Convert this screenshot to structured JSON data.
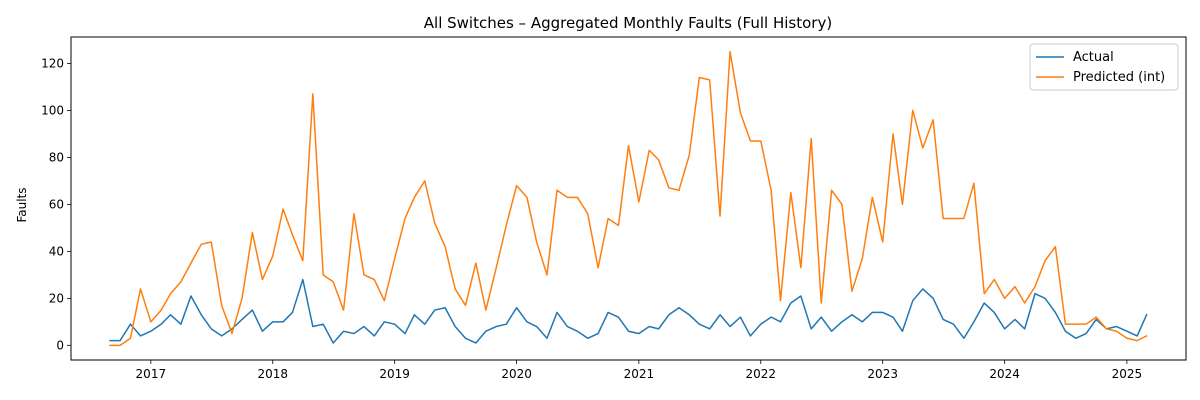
{
  "chart_data": {
    "type": "line",
    "title": "All Switches – Aggregated Monthly Faults (Full History)",
    "xlabel": "",
    "ylabel": "Faults",
    "x_start": "2016-09",
    "x_frequency": "monthly",
    "xlim": [
      "2016-05-07",
      "2025-06-27"
    ],
    "ylim": [
      -6.25,
      131.25
    ],
    "x_ticks": [
      "2017",
      "2018",
      "2019",
      "2020",
      "2021",
      "2022",
      "2023",
      "2024",
      "2025"
    ],
    "y_ticks": [
      0,
      20,
      40,
      60,
      80,
      100,
      120
    ],
    "grid": false,
    "legend": "top-right",
    "series": [
      {
        "name": "Actual",
        "color": "#1f77b4",
        "values": [
          2,
          2,
          9,
          4,
          6,
          9,
          13,
          9,
          21,
          13,
          7,
          4,
          7,
          11,
          15,
          6,
          10,
          10,
          14,
          28,
          8,
          9,
          1,
          6,
          5,
          8,
          4,
          10,
          9,
          5,
          13,
          9,
          15,
          16,
          8,
          3,
          1,
          6,
          8,
          9,
          16,
          10,
          8,
          3,
          14,
          8,
          6,
          3,
          5,
          14,
          12,
          6,
          5,
          8,
          7,
          13,
          16,
          13,
          9,
          7,
          13,
          8,
          12,
          4,
          9,
          12,
          10,
          18,
          21,
          7,
          12,
          6,
          10,
          13,
          10,
          14,
          14,
          12,
          6,
          19,
          24,
          20,
          11,
          9,
          3,
          10,
          18,
          14,
          7,
          11,
          7,
          22,
          20,
          14,
          6,
          3,
          5,
          11,
          7,
          8,
          6,
          4,
          13
        ]
      },
      {
        "name": "Predicted (int)",
        "color": "#ff7f0e",
        "values": [
          0,
          0,
          3,
          24,
          10,
          15,
          22,
          27,
          35,
          43,
          44,
          17,
          5,
          20,
          48,
          28,
          38,
          58,
          47,
          36,
          107,
          30,
          27,
          15,
          56,
          30,
          28,
          19,
          37,
          54,
          63,
          70,
          52,
          42,
          24,
          17,
          35,
          15,
          33,
          51,
          68,
          63,
          44,
          30,
          66,
          63,
          63,
          56,
          33,
          54,
          51,
          85,
          61,
          83,
          79,
          67,
          66,
          81,
          114,
          113,
          55,
          125,
          99,
          87,
          87,
          66,
          19,
          65,
          33,
          88,
          18,
          66,
          60,
          23,
          37,
          63,
          44,
          90,
          60,
          100,
          84,
          96,
          54,
          54,
          54,
          69,
          22,
          28,
          20,
          25,
          18,
          25,
          36,
          42,
          9,
          9,
          9,
          12,
          7,
          6,
          3,
          2,
          4
        ]
      }
    ]
  }
}
